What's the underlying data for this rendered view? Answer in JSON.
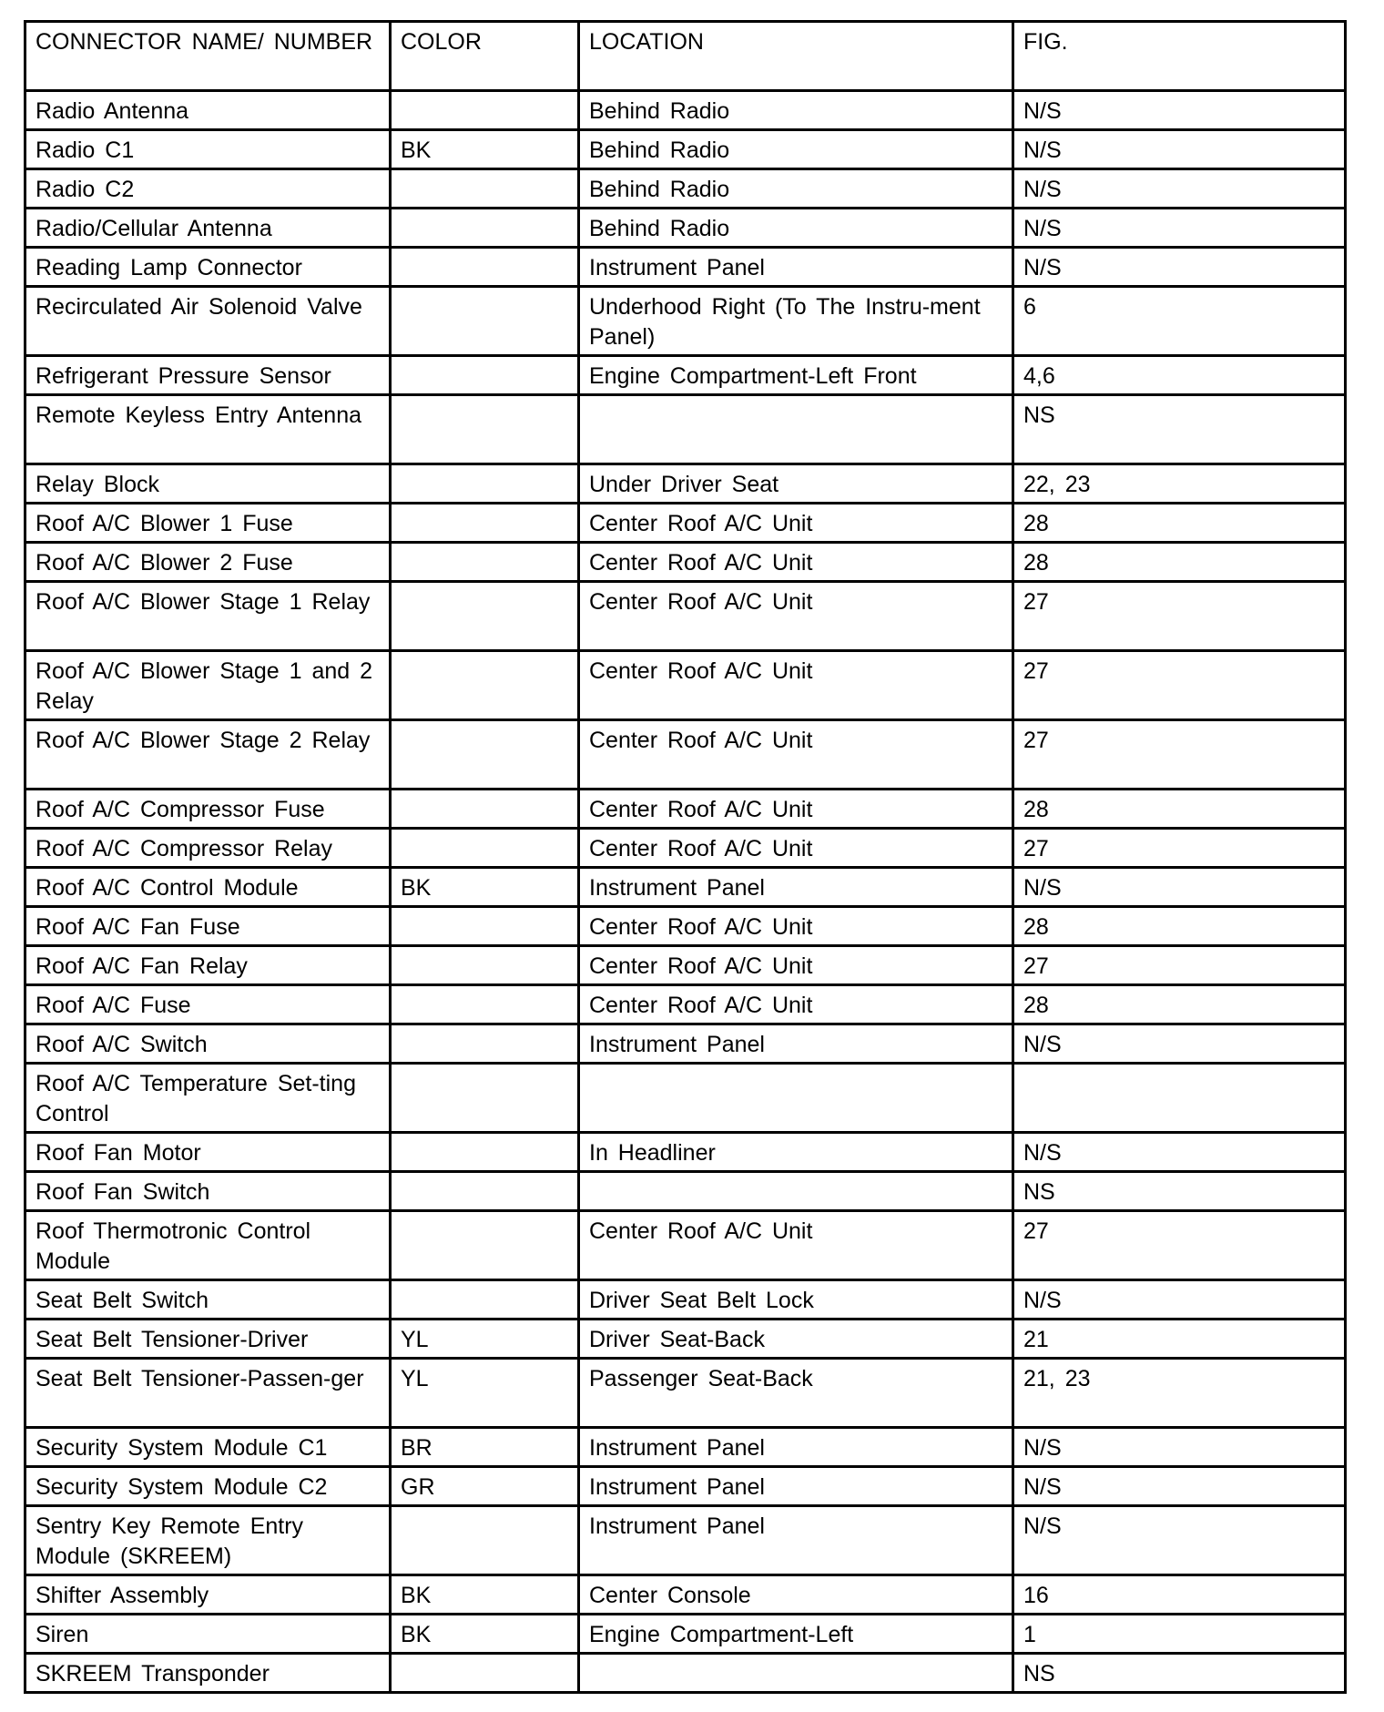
{
  "headers": [
    "CONNECTOR NAME/ NUMBER",
    "COLOR",
    "LOCATION",
    "FIG."
  ],
  "rows": [
    {
      "name": "Radio Antenna",
      "color": "",
      "location": "Behind Radio",
      "fig": "N/S",
      "tall": false
    },
    {
      "name": "Radio C1",
      "color": "BK",
      "location": "Behind Radio",
      "fig": "N/S",
      "tall": false
    },
    {
      "name": "Radio C2",
      "color": "",
      "location": "Behind Radio",
      "fig": "N/S",
      "tall": false
    },
    {
      "name": "Radio/Cellular Antenna",
      "color": "",
      "location": "Behind Radio",
      "fig": "N/S",
      "tall": false
    },
    {
      "name": "Reading Lamp Connector",
      "color": "",
      "location": "Instrument Panel",
      "fig": "N/S",
      "tall": false
    },
    {
      "name": "Recirculated Air Solenoid Valve",
      "color": "",
      "location": "Underhood Right (To The Instru-ment Panel)",
      "fig": "6",
      "tall": true
    },
    {
      "name": "Refrigerant Pressure Sensor",
      "color": "",
      "location": "Engine Compartment-Left Front",
      "fig": "4,6",
      "tall": false
    },
    {
      "name": "Remote Keyless Entry Antenna",
      "color": "",
      "location": "",
      "fig": "NS",
      "tall": true
    },
    {
      "name": "Relay Block",
      "color": "",
      "location": "Under Driver Seat",
      "fig": "22, 23",
      "tall": false
    },
    {
      "name": "Roof A/C Blower 1 Fuse",
      "color": "",
      "location": "Center Roof A/C Unit",
      "fig": "28",
      "tall": false
    },
    {
      "name": "Roof A/C Blower 2 Fuse",
      "color": "",
      "location": "Center Roof A/C Unit",
      "fig": "28",
      "tall": false
    },
    {
      "name": "Roof A/C Blower Stage 1 Relay",
      "color": "",
      "location": "Center Roof A/C Unit",
      "fig": "27",
      "tall": true
    },
    {
      "name": "Roof A/C Blower Stage 1 and 2 Relay",
      "color": "",
      "location": "Center Roof A/C Unit",
      "fig": "27",
      "tall": true
    },
    {
      "name": "Roof A/C Blower Stage 2 Relay",
      "color": "",
      "location": "Center Roof A/C Unit",
      "fig": "27",
      "tall": true
    },
    {
      "name": "Roof A/C Compressor Fuse",
      "color": "",
      "location": "Center Roof A/C Unit",
      "fig": "28",
      "tall": false
    },
    {
      "name": "Roof A/C Compressor Relay",
      "color": "",
      "location": "Center Roof A/C Unit",
      "fig": "27",
      "tall": false
    },
    {
      "name": "Roof A/C Control Module",
      "color": "BK",
      "location": "Instrument Panel",
      "fig": "N/S",
      "tall": false
    },
    {
      "name": "Roof A/C Fan Fuse",
      "color": "",
      "location": "Center Roof A/C Unit",
      "fig": "28",
      "tall": false
    },
    {
      "name": "Roof A/C Fan Relay",
      "color": "",
      "location": "Center Roof A/C Unit",
      "fig": "27",
      "tall": false
    },
    {
      "name": "Roof A/C Fuse",
      "color": "",
      "location": "Center Roof A/C Unit",
      "fig": "28",
      "tall": false
    },
    {
      "name": "Roof A/C Switch",
      "color": "",
      "location": "Instrument Panel",
      "fig": "N/S",
      "tall": false
    },
    {
      "name": "Roof A/C Temperature Set-ting Control",
      "color": "",
      "location": "",
      "fig": "",
      "tall": true
    },
    {
      "name": "Roof Fan Motor",
      "color": "",
      "location": "In Headliner",
      "fig": "N/S",
      "tall": false
    },
    {
      "name": "Roof Fan Switch",
      "color": "",
      "location": "",
      "fig": "NS",
      "tall": false
    },
    {
      "name": "Roof Thermotronic Control Module",
      "color": "",
      "location": "Center Roof A/C Unit",
      "fig": "27",
      "tall": true
    },
    {
      "name": "Seat Belt Switch",
      "color": "",
      "location": "Driver Seat Belt Lock",
      "fig": "N/S",
      "tall": false
    },
    {
      "name": "Seat Belt Tensioner-Driver",
      "color": "YL",
      "location": "Driver Seat-Back",
      "fig": "21",
      "tall": false
    },
    {
      "name": "Seat Belt Tensioner-Passen-ger",
      "color": "YL",
      "location": "Passenger Seat-Back",
      "fig": "21, 23",
      "tall": true
    },
    {
      "name": "Security System Module C1",
      "color": "BR",
      "location": "Instrument Panel",
      "fig": "N/S",
      "tall": false
    },
    {
      "name": "Security System Module C2",
      "color": "GR",
      "location": "Instrument Panel",
      "fig": "N/S",
      "tall": false
    },
    {
      "name": "Sentry Key Remote Entry Module (SKREEM)",
      "color": "",
      "location": "Instrument Panel",
      "fig": "N/S",
      "tall": true
    },
    {
      "name": "Shifter Assembly",
      "color": "BK",
      "location": "Center Console",
      "fig": "16",
      "tall": false
    },
    {
      "name": "Siren",
      "color": "BK",
      "location": "Engine Compartment-Left",
      "fig": "1",
      "tall": false
    },
    {
      "name": "SKREEM Transponder",
      "color": "",
      "location": "",
      "fig": "NS",
      "tall": false
    }
  ]
}
